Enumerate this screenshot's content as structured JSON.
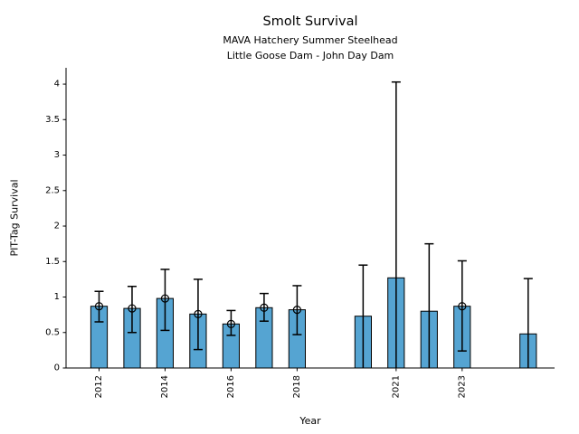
{
  "chart_data": {
    "type": "bar",
    "title": "Smolt Survival",
    "subtitle_line1": "MAVA Hatchery Summer Steelhead",
    "subtitle_line2": "Little Goose Dam - John Day Dam",
    "xlabel": "Year",
    "ylabel": "PIT-Tag Survival",
    "x": [
      2012,
      2013,
      2014,
      2015,
      2016,
      2017,
      2018,
      2020,
      2021,
      2022,
      2023,
      2025
    ],
    "values": [
      0.87,
      0.84,
      0.98,
      0.76,
      0.62,
      0.85,
      0.82,
      0.73,
      1.27,
      0.8,
      0.87,
      0.48
    ],
    "error_low": [
      0.65,
      0.5,
      0.53,
      0.26,
      0.46,
      0.66,
      0.47,
      0.0,
      0.0,
      0.0,
      0.24,
      0.0
    ],
    "error_high": [
      1.08,
      1.15,
      1.39,
      1.25,
      0.81,
      1.05,
      1.16,
      1.45,
      4.03,
      1.75,
      1.51,
      1.26
    ],
    "point_markers": [
      true,
      true,
      true,
      true,
      true,
      true,
      true,
      false,
      false,
      false,
      true,
      false
    ],
    "bar_width_years": 0.5,
    "xticks": [
      2012,
      2014,
      2016,
      2018,
      2021,
      2023
    ],
    "yticks": [
      0,
      0.5,
      1,
      1.5,
      2,
      2.5,
      3,
      3.5,
      4
    ],
    "xlim": [
      2011,
      2025.8
    ],
    "ylim": [
      0,
      4.23
    ],
    "grid": false,
    "legend_position": "none",
    "colors": {
      "bar_fill": "#55A4D2",
      "bar_edge": "#000000",
      "error_bar": "#000000",
      "marker_edge": "#000000",
      "axis": "#000000",
      "text": "#000000",
      "background": "#FFFFFF"
    }
  }
}
